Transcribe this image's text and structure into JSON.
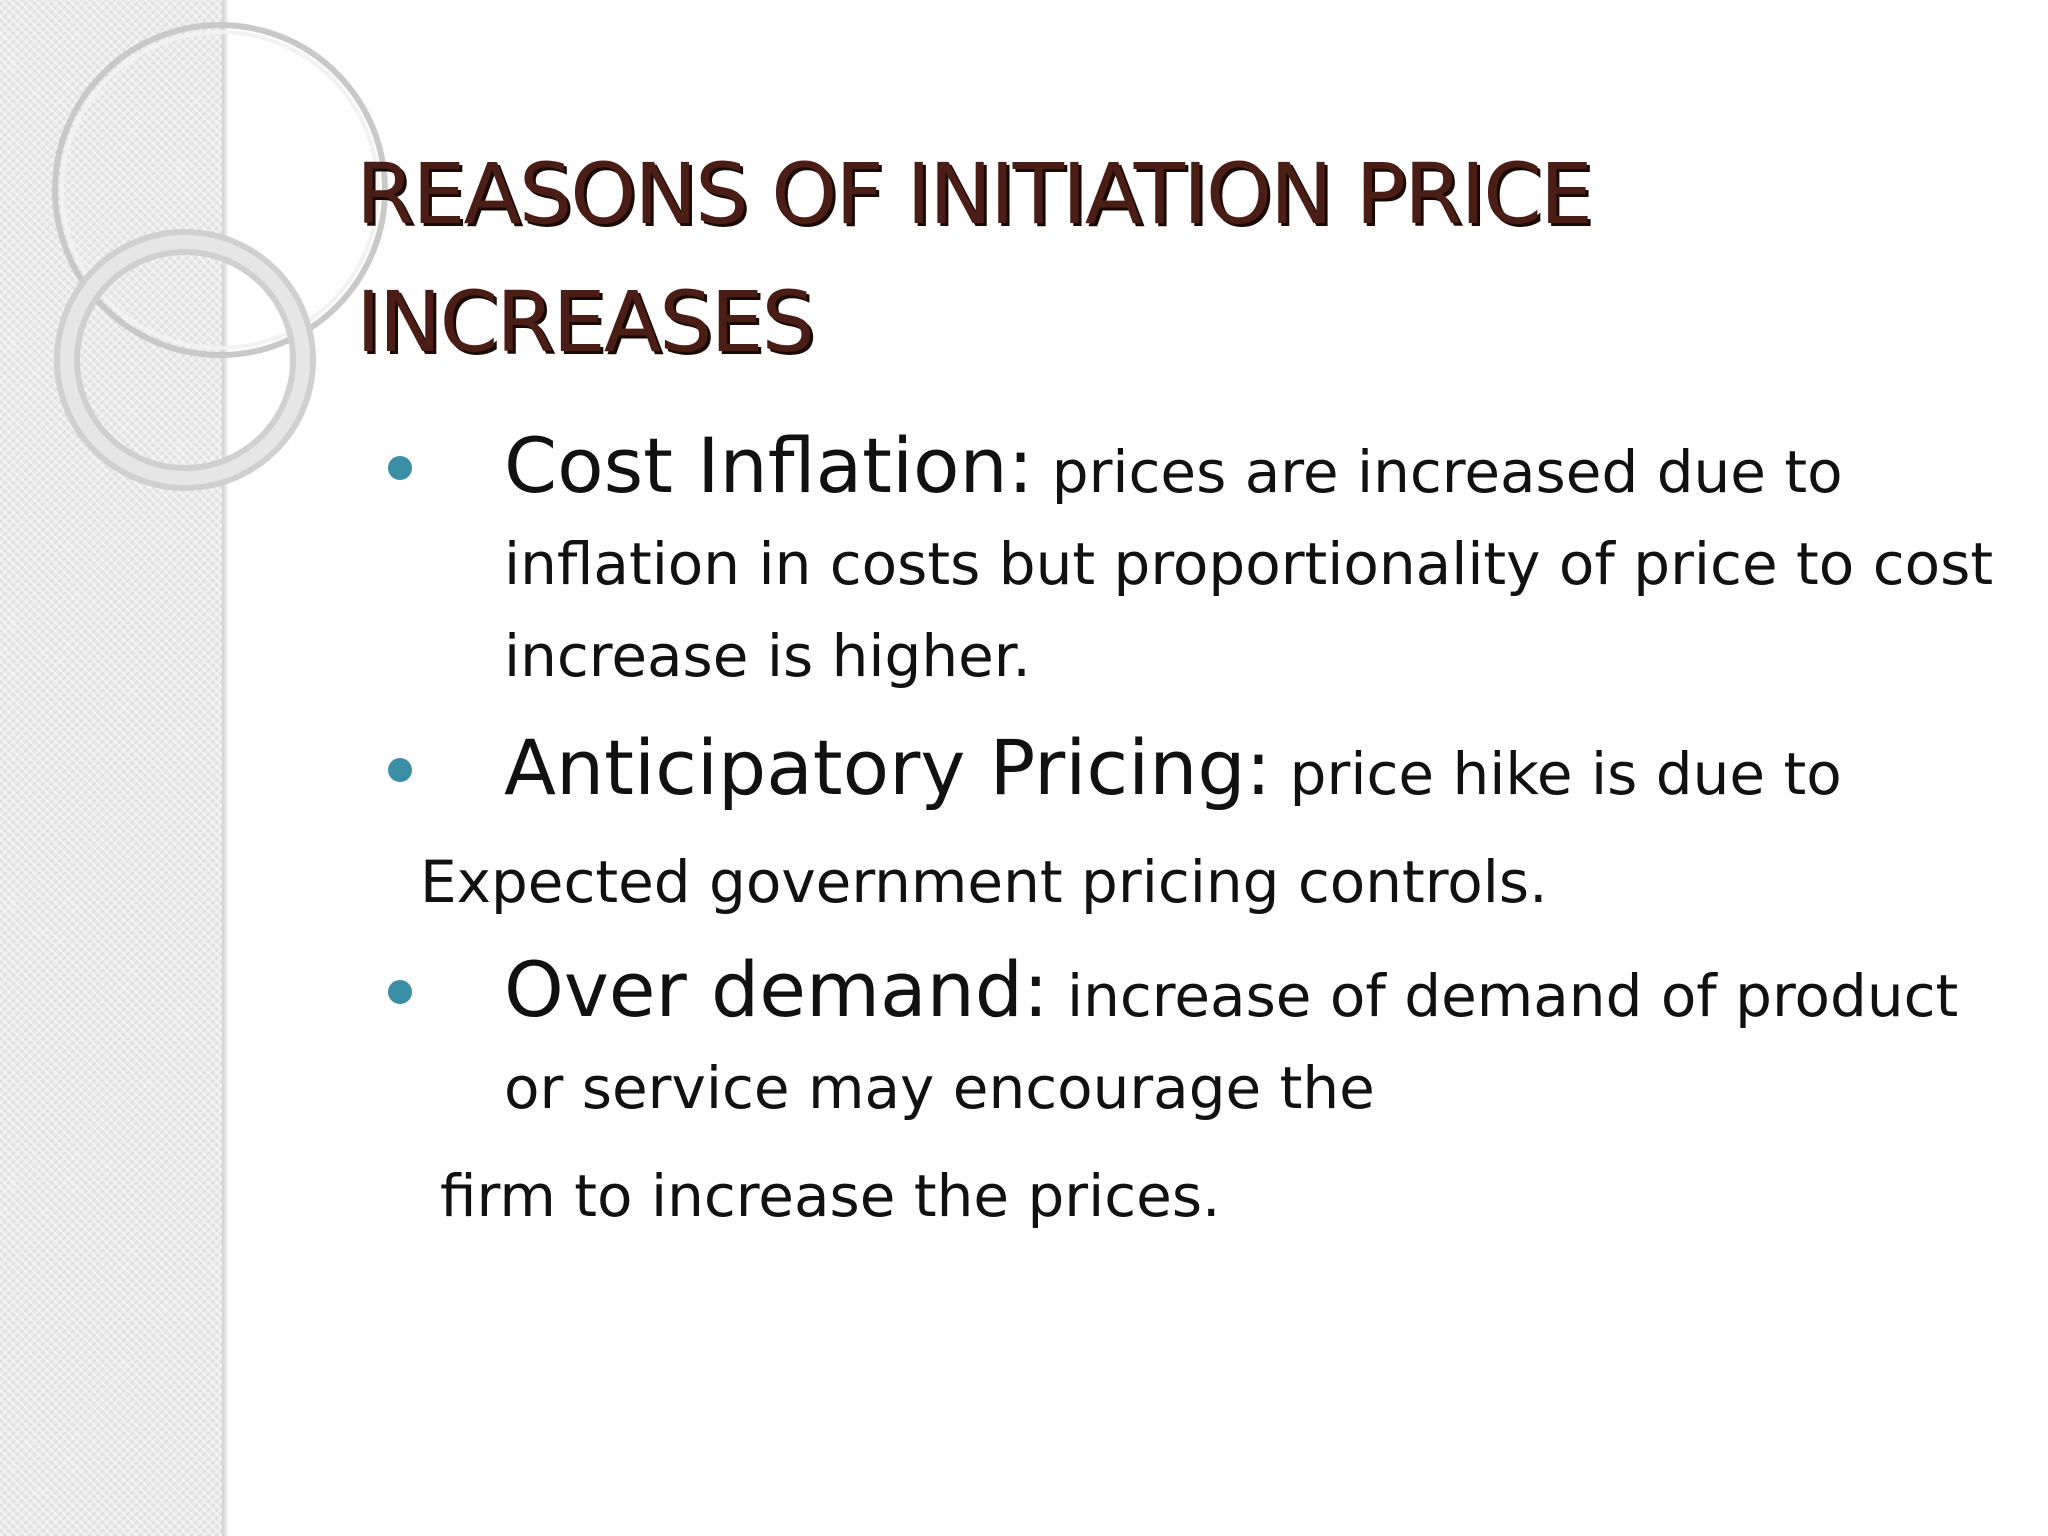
{
  "title": {
    "line1": "REASONS OF INITIATION PRICE",
    "line2": "INCREASES"
  },
  "items": [
    {
      "heading": "Cost Inflation:",
      "text": " prices are increased due to inflation in costs but proportionality of price to cost increase is higher."
    },
    {
      "heading": "Anticipatory Pricing:",
      "text": " price hike is due to",
      "continuation": "Expected government pricing controls."
    },
    {
      "heading": "Over demand:",
      "text": " increase of demand of product or service may encourage the",
      "continuation": "firm to increase the prices."
    }
  ],
  "colors": {
    "title": "#4a1e14",
    "bullet": "#3a8fa6",
    "body_text": "#111111"
  }
}
